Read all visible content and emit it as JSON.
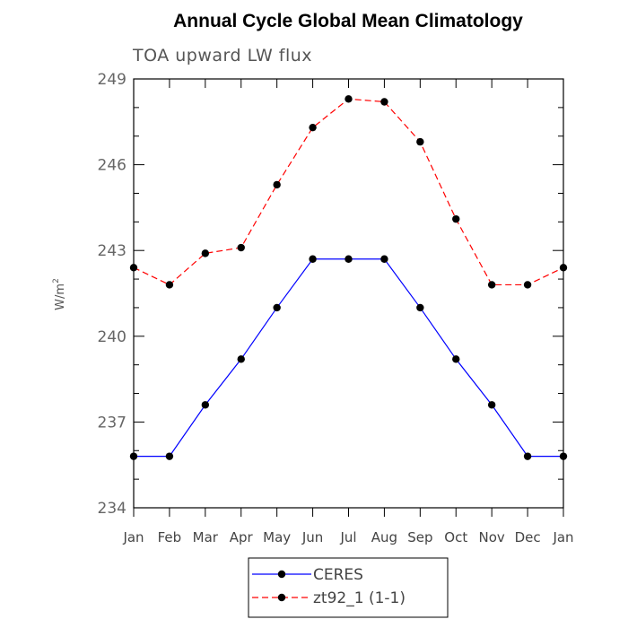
{
  "chart_data": {
    "type": "line",
    "title": "Annual Cycle Global Mean Climatology",
    "subtitle": "TOA upward LW flux",
    "ylabel_main": "W/m",
    "ylabel_sup": "2",
    "xlabel": "",
    "categories": [
      "Jan",
      "Feb",
      "Mar",
      "Apr",
      "May",
      "Jun",
      "Jul",
      "Aug",
      "Sep",
      "Oct",
      "Nov",
      "Dec",
      "Jan"
    ],
    "ylim": [
      234,
      249
    ],
    "yticks": [
      234,
      237,
      240,
      243,
      246,
      249
    ],
    "grid": false,
    "legend_placement": "bottom-center",
    "series": [
      {
        "name": "CERES",
        "color": "#0000ff",
        "dashed": false,
        "values": [
          235.8,
          235.8,
          237.6,
          239.2,
          241.0,
          242.7,
          242.7,
          242.7,
          241.0,
          239.2,
          237.6,
          235.8,
          235.8
        ]
      },
      {
        "name": "zt92_1 (1-1)",
        "color": "#ff0000",
        "dashed": true,
        "values": [
          242.4,
          241.8,
          242.9,
          243.1,
          245.3,
          247.3,
          248.3,
          248.2,
          246.8,
          244.1,
          241.8,
          241.8,
          242.4
        ]
      }
    ]
  }
}
